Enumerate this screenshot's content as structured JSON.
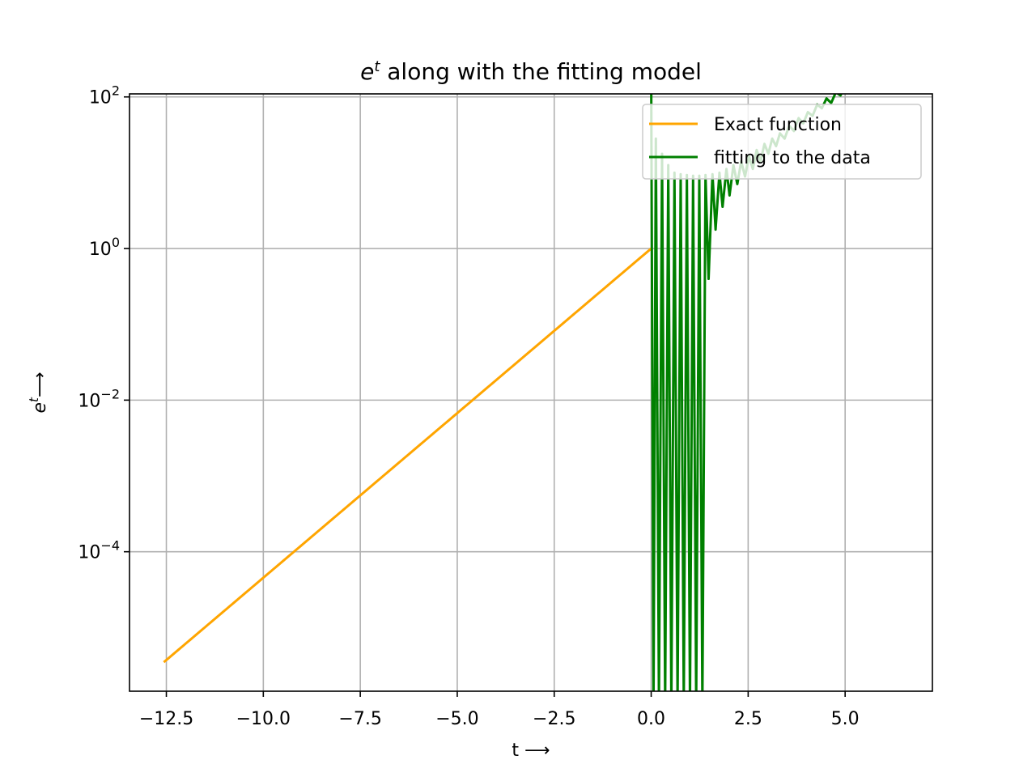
{
  "chart_data": {
    "type": "line",
    "title": {
      "base": "e",
      "sup": "t",
      "rest": " along with the fitting model"
    },
    "xlabel": "t ⟶",
    "ylabel": {
      "base": "e",
      "sup": "t",
      "rest": "⟶"
    },
    "xscale": "linear",
    "yscale": "log",
    "xlim": [
      -13.45,
      7.25
    ],
    "ylim_log10": [
      -5.84,
      2.04
    ],
    "x_ticks": [
      {
        "value": -12.5,
        "label": "−12.5"
      },
      {
        "value": -10.0,
        "label": "−10.0"
      },
      {
        "value": -7.5,
        "label": "−7.5"
      },
      {
        "value": -5.0,
        "label": "−5.0"
      },
      {
        "value": -2.5,
        "label": "−2.5"
      },
      {
        "value": 0.0,
        "label": "0.0"
      },
      {
        "value": 2.5,
        "label": "2.5"
      },
      {
        "value": 5.0,
        "label": "5.0"
      }
    ],
    "y_ticks": [
      {
        "log10": 2,
        "label": "10",
        "exp": "2"
      },
      {
        "log10": 0,
        "label": "10",
        "exp": "0"
      },
      {
        "log10": -2,
        "label": "10",
        "exp": "−2"
      },
      {
        "log10": -4,
        "label": "10",
        "exp": "−4"
      }
    ],
    "grid": true,
    "legend_position": "upper-right",
    "series": [
      {
        "name": "Exact function",
        "color": "#ffa500",
        "function": "exp",
        "x_range": [
          -12.566,
          0.0
        ]
      },
      {
        "name": "fitting to the data",
        "color": "#008000",
        "function": "oscillating_fit",
        "x_range": [
          0.0,
          6.2
        ],
        "points": [
          [
            0.0,
            2.3
          ],
          [
            0.06,
            -6
          ],
          [
            0.12,
            1.45
          ],
          [
            0.2,
            -6
          ],
          [
            0.28,
            1.25
          ],
          [
            0.36,
            -6
          ],
          [
            0.44,
            1.1
          ],
          [
            0.52,
            -6
          ],
          [
            0.6,
            1.0
          ],
          [
            0.68,
            -6
          ],
          [
            0.76,
            0.98
          ],
          [
            0.84,
            -6
          ],
          [
            0.92,
            0.97
          ],
          [
            1.0,
            -6
          ],
          [
            1.08,
            0.96
          ],
          [
            1.16,
            -6
          ],
          [
            1.24,
            0.96
          ],
          [
            1.32,
            -6
          ],
          [
            1.4,
            0.97
          ],
          [
            1.48,
            -0.4
          ],
          [
            1.58,
            0.98
          ],
          [
            1.66,
            0.25
          ],
          [
            1.76,
            1.0
          ],
          [
            1.84,
            0.55
          ],
          [
            1.94,
            1.05
          ],
          [
            2.02,
            0.7
          ],
          [
            2.12,
            1.1
          ],
          [
            2.22,
            0.85
          ],
          [
            2.32,
            1.15
          ],
          [
            2.42,
            0.95
          ],
          [
            2.52,
            1.22
          ],
          [
            2.62,
            1.05
          ],
          [
            2.72,
            1.3
          ],
          [
            2.82,
            1.15
          ],
          [
            2.92,
            1.38
          ],
          [
            3.02,
            1.25
          ],
          [
            3.12,
            1.45
          ],
          [
            3.22,
            1.35
          ],
          [
            3.32,
            1.52
          ],
          [
            3.44,
            1.45
          ],
          [
            3.56,
            1.62
          ],
          [
            3.68,
            1.55
          ],
          [
            3.8,
            1.72
          ],
          [
            3.92,
            1.65
          ],
          [
            4.04,
            1.8
          ],
          [
            4.16,
            1.75
          ],
          [
            4.28,
            1.9
          ],
          [
            4.4,
            1.85
          ],
          [
            4.52,
            1.98
          ],
          [
            4.64,
            1.92
          ],
          [
            4.76,
            2.06
          ],
          [
            4.88,
            2.02
          ],
          [
            5.0,
            2.14
          ],
          [
            5.12,
            2.1
          ],
          [
            5.24,
            2.22
          ],
          [
            5.36,
            2.18
          ],
          [
            5.48,
            2.3
          ],
          [
            5.6,
            2.26
          ],
          [
            5.72,
            2.38
          ],
          [
            5.84,
            2.35
          ],
          [
            5.96,
            2.47
          ],
          [
            6.08,
            2.45
          ],
          [
            6.12,
            2.72
          ],
          [
            6.18,
            2.72
          ],
          [
            6.2,
            2.45
          ]
        ]
      }
    ]
  }
}
